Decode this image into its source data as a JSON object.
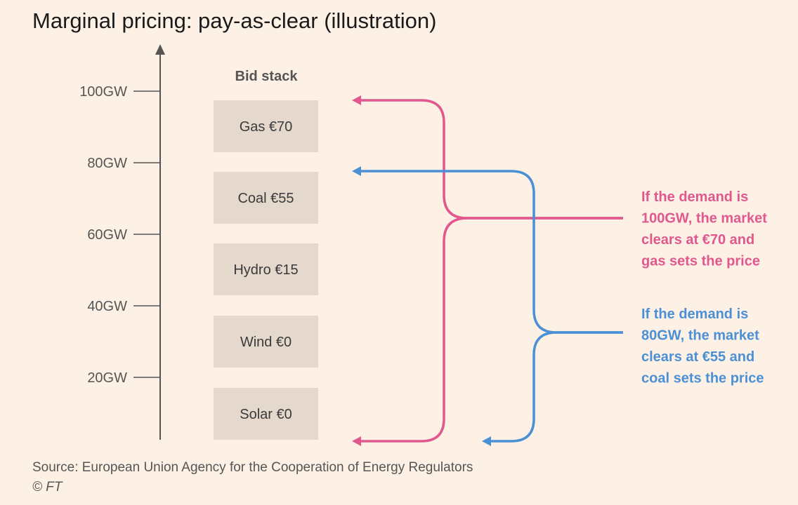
{
  "title": "Marginal pricing: pay-as-clear (illustration)",
  "colors": {
    "background": "#FDF1E5",
    "block": "#E5D9CE",
    "gas_line": "#E0588E",
    "coal_line": "#4B90D5",
    "axis": "#555555"
  },
  "axis": {
    "ticks": [
      "100GW",
      "80GW",
      "60GW",
      "40GW",
      "20GW"
    ]
  },
  "bid_stack": {
    "heading": "Bid stack",
    "blocks": [
      "Gas €70",
      "Coal €55",
      "Hydro €15",
      "Wind €0",
      "Solar €0"
    ]
  },
  "annotations": {
    "gas": [
      "If the demand is",
      "100GW, the market",
      "clears at €70 and",
      "gas sets the price"
    ],
    "coal": [
      "If the demand is",
      "80GW, the market",
      "clears at €55 and",
      "coal sets the price"
    ]
  },
  "source": "Source: European Union Agency for the Cooperation of Energy Regulators",
  "copyright": "© FT"
}
